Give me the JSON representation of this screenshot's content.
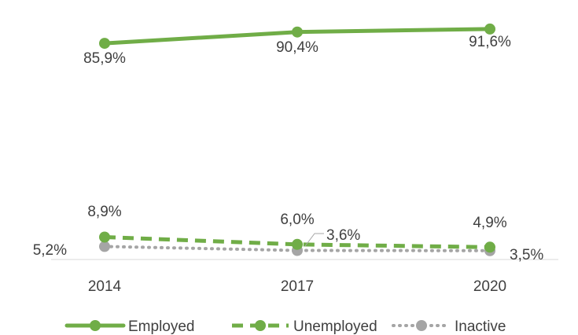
{
  "chart_data": {
    "type": "line",
    "categories": [
      "2014",
      "2017",
      "2020"
    ],
    "ylim": [
      0,
      100
    ],
    "grid": false,
    "legend_position": "bottom",
    "series": [
      {
        "name": "Employed",
        "values": [
          85.9,
          90.4,
          91.6
        ],
        "labels": [
          "85,9%",
          "90,4%",
          "91,6%"
        ],
        "color": "#70ad47",
        "style": "solid"
      },
      {
        "name": "Unemployed",
        "values": [
          8.9,
          6.0,
          4.9
        ],
        "labels": [
          "8,9%",
          "6,0%",
          "4,9%"
        ],
        "color": "#70ad47",
        "style": "dashed"
      },
      {
        "name": "Inactive",
        "values": [
          5.2,
          3.6,
          3.5
        ],
        "labels": [
          "5,2%",
          "3,6%",
          "3,5%"
        ],
        "color": "#a5a5a5",
        "style": "dotted"
      }
    ]
  }
}
